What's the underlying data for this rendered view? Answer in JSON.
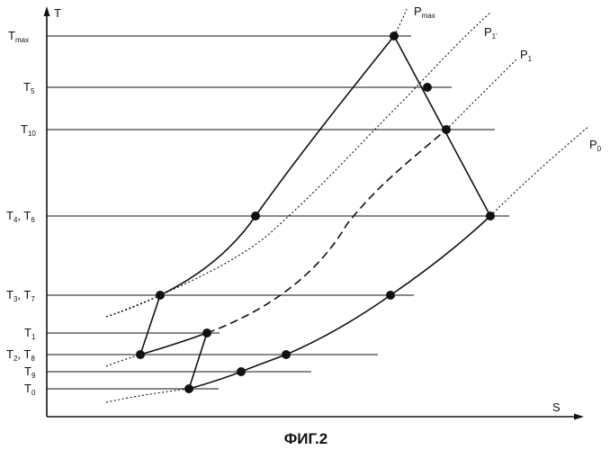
{
  "figure": {
    "caption": "ФИГ.2",
    "axes": {
      "y_label": "T",
      "x_label": "S"
    },
    "temperature_levels": [
      {
        "main": "T",
        "sub": "max"
      },
      {
        "main": "T",
        "sub": "5"
      },
      {
        "main": "T",
        "sub": "10"
      },
      {
        "main": "T",
        "sub": "4",
        "sep": ", ",
        "main2": "T",
        "sub2": "6"
      },
      {
        "main": "T",
        "sub": "3",
        "sep": ", ",
        "main2": "T",
        "sub2": "7"
      },
      {
        "main": "T",
        "sub": "1"
      },
      {
        "main": "T",
        "sub": "2",
        "sep": ", ",
        "main2": "T",
        "sub2": "8"
      },
      {
        "main": "T",
        "sub": "9"
      },
      {
        "main": "T",
        "sub": "0"
      }
    ],
    "isobars": [
      {
        "main": "P",
        "sub": "max"
      },
      {
        "main": "P",
        "sub": "1'"
      },
      {
        "main": "P",
        "sub": "1"
      },
      {
        "main": "P",
        "sub": "0"
      }
    ]
  }
}
